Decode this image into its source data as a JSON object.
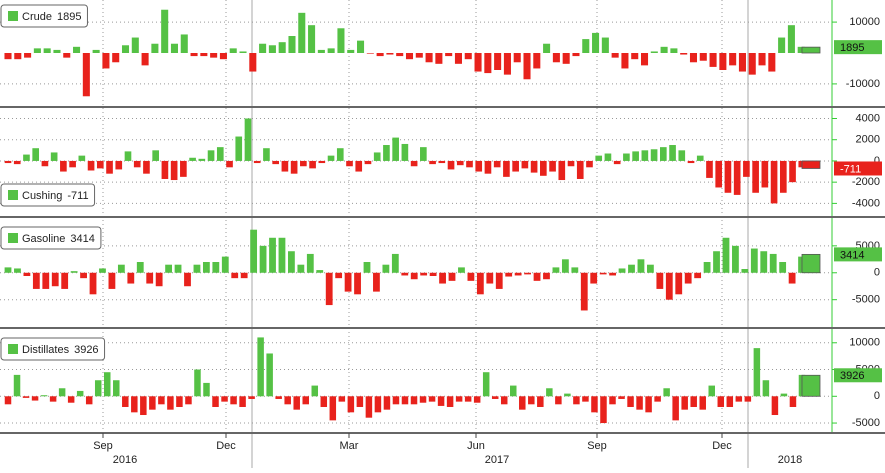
{
  "chart_data": [
    {
      "type": "bar",
      "name": "Crude",
      "pos_color": "#55c145",
      "neg_color": "#e8221c",
      "ylim": [
        -16500,
        16500
      ],
      "yticks": [
        10000,
        -10000
      ],
      "grid": true,
      "values": [
        -2000,
        -2000,
        -1500,
        1500,
        1500,
        1000,
        -1500,
        2000,
        -14000,
        1000,
        -5000,
        -3000,
        2500,
        5000,
        -4000,
        3000,
        14000,
        3000,
        6000,
        -1000,
        -1000,
        -1500,
        -2000,
        1500,
        500,
        -6000,
        3000,
        2500,
        3500,
        5500,
        13000,
        9000,
        1000,
        1500,
        8000,
        1000,
        4000,
        -200,
        -1000,
        -500,
        -1000,
        -2000,
        -1500,
        -3000,
        -3500,
        -1000,
        -3500,
        -2000,
        -6000,
        -6500,
        -5500,
        -7000,
        -3000,
        -8500,
        -5000,
        3000,
        -3000,
        -3500,
        -1000,
        4500,
        6500,
        5000,
        -1500,
        -5000,
        -2000,
        -4000,
        500,
        2000,
        1500,
        -500,
        -3000,
        -2500,
        -4500,
        -5500,
        -4000,
        -6000,
        -7000,
        -4000,
        -6000,
        5000,
        9000,
        2000,
        1895
      ]
    },
    {
      "type": "bar",
      "name": "Cushing",
      "pos_color": "#55c145",
      "neg_color": "#e8221c",
      "ylim": [
        -5000,
        4800
      ],
      "yticks": [
        4000,
        2000,
        0,
        -2000,
        -4000
      ],
      "grid": true,
      "values": [
        -200,
        -300,
        600,
        1200,
        -500,
        800,
        -1000,
        -600,
        500,
        -900,
        -700,
        -1200,
        -800,
        900,
        -600,
        -1200,
        1000,
        -1700,
        -1800,
        -1500,
        300,
        200,
        1000,
        1300,
        -600,
        2300,
        4000,
        -200,
        1200,
        -300,
        -1000,
        -1200,
        -500,
        -700,
        -200,
        500,
        1200,
        -500,
        -1000,
        -300,
        800,
        1500,
        2200,
        1600,
        -500,
        1300,
        -300,
        -200,
        -800,
        -400,
        -600,
        -1000,
        -1200,
        -600,
        -1500,
        -1000,
        -700,
        -1100,
        -1400,
        -1000,
        -1800,
        -500,
        -1700,
        -600,
        500,
        700,
        -300,
        700,
        900,
        1000,
        1100,
        1300,
        1500,
        1000,
        -200,
        500,
        -1600,
        -2500,
        -3000,
        -3200,
        -1500,
        -3000,
        -2500,
        -4000,
        -3000,
        -2000,
        -600,
        -711
      ]
    },
    {
      "type": "bar",
      "name": "Gasoline",
      "pos_color": "#55c145",
      "neg_color": "#e8221c",
      "ylim": [
        -9700,
        9800
      ],
      "yticks": [
        5000,
        0,
        -5000
      ],
      "grid": true,
      "values": [
        1000,
        800,
        -600,
        -3000,
        -3000,
        -2500,
        -3000,
        300,
        -1000,
        -4000,
        800,
        -3000,
        1500,
        -2000,
        2000,
        -2000,
        -2500,
        1500,
        1500,
        -2500,
        1500,
        2000,
        2000,
        3000,
        -1000,
        -1000,
        8000,
        5000,
        6500,
        6500,
        4000,
        1500,
        3500,
        500,
        -6000,
        -1000,
        -3500,
        -4000,
        2000,
        -3500,
        1500,
        3500,
        -500,
        -1200,
        -500,
        -600,
        -2000,
        -1500,
        1000,
        -1500,
        -4000,
        -2000,
        -3000,
        -700,
        -500,
        -300,
        -1500,
        -1200,
        1000,
        2500,
        1000,
        -7000,
        -2000,
        -300,
        -500,
        800,
        1500,
        2500,
        1500,
        -3000,
        -5000,
        -4000,
        -2000,
        -1000,
        2000,
        4000,
        6500,
        5000,
        700,
        4500,
        4000,
        3500,
        2000,
        -2000,
        3000,
        3414
      ]
    },
    {
      "type": "bar",
      "name": "Distillates",
      "pos_color": "#55c145",
      "neg_color": "#e8221c",
      "ylim": [
        -6300,
        12200
      ],
      "yticks": [
        10000,
        5000,
        0,
        -5000
      ],
      "grid": true,
      "values": [
        -1500,
        4000,
        -300,
        -800,
        200,
        -1000,
        1500,
        -1200,
        1000,
        -1500,
        3000,
        4500,
        3000,
        -2000,
        -3000,
        -3500,
        -2500,
        -1500,
        -2500,
        -2000,
        -1500,
        5000,
        2500,
        -2000,
        -1000,
        -1500,
        -2000,
        -500,
        11000,
        8000,
        -500,
        -1500,
        -2500,
        -1500,
        2000,
        -2000,
        -4500,
        -1000,
        -3000,
        -2000,
        -4000,
        -3000,
        -2500,
        -1500,
        -1500,
        -1500,
        -1200,
        -1000,
        -1800,
        -2000,
        -1000,
        -1000,
        -1200,
        4500,
        -500,
        -1500,
        2000,
        -2500,
        -1500,
        -2000,
        1500,
        -1500,
        500,
        -1500,
        -1000,
        -3000,
        -5000,
        -1500,
        -500,
        -2000,
        -2500,
        -3000,
        -1000,
        1500,
        -4500,
        -2500,
        -2000,
        -2500,
        2000,
        -2000,
        -2000,
        -1000,
        -1000,
        9000,
        3000,
        -3500,
        500,
        -2000,
        4000,
        3926
      ],
      "xtick_labels": [
        "Sep",
        "Dec",
        "Mar",
        "Jun",
        "Sep",
        "Dec"
      ],
      "year_labels": [
        "2016",
        "2017",
        "2018"
      ]
    }
  ]
}
